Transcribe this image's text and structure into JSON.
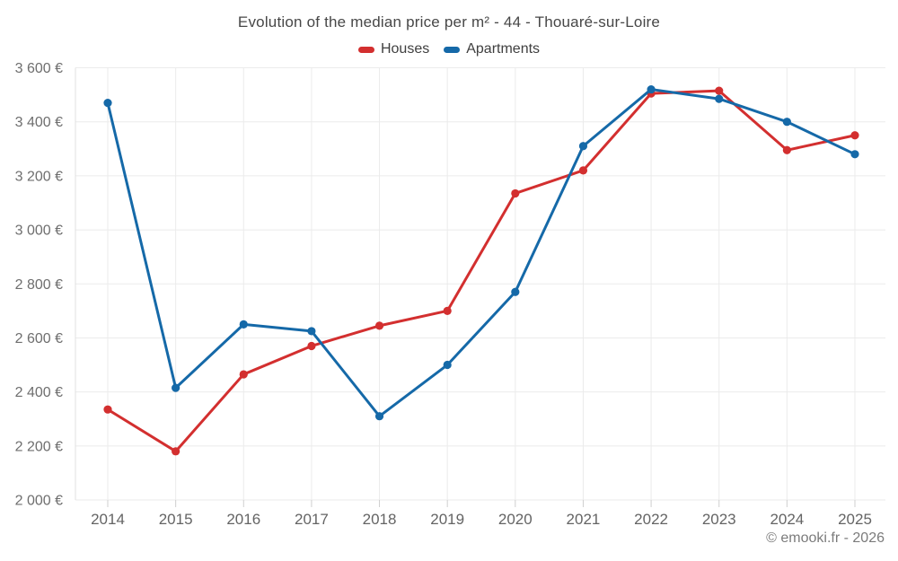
{
  "title": "Evolution of the median price per m² - 44 - Thouaré-sur-Loire",
  "watermark": "© emooki.fr - 2026",
  "chart_data": {
    "type": "line",
    "x": [
      "2014",
      "2015",
      "2016",
      "2017",
      "2018",
      "2019",
      "2020",
      "2021",
      "2022",
      "2023",
      "2024",
      "2025"
    ],
    "series": [
      {
        "name": "Houses",
        "color": "#d32f2f",
        "values": [
          2335,
          2180,
          2465,
          2570,
          2645,
          2700,
          3135,
          3220,
          3505,
          3515,
          3295,
          3350
        ]
      },
      {
        "name": "Apartments",
        "color": "#1569a8",
        "values": [
          3470,
          2415,
          2650,
          2625,
          2310,
          2500,
          2770,
          3310,
          3520,
          3485,
          3400,
          3280
        ]
      }
    ],
    "ylim": [
      2000,
      3600
    ],
    "ytick_step": 200,
    "yticks": [
      {
        "value": 2000,
        "label": "2 000 €"
      },
      {
        "value": 2200,
        "label": "2 200 €"
      },
      {
        "value": 2400,
        "label": "2 400 €"
      },
      {
        "value": 2600,
        "label": "2 600 €"
      },
      {
        "value": 2800,
        "label": "2 800 €"
      },
      {
        "value": 3000,
        "label": "3 000 €"
      },
      {
        "value": 3200,
        "label": "3 200 €"
      },
      {
        "value": 3400,
        "label": "3 400 €"
      },
      {
        "value": 3600,
        "label": "3 600 €"
      }
    ],
    "grid": true,
    "legend_position": "top",
    "currency": "€"
  },
  "colors": {
    "gridline": "#ebebeb",
    "axis_line": "#e0e0e0",
    "tick": "#cfcfcf",
    "y_label": "#6e6e6e",
    "x_label": "#646464"
  }
}
